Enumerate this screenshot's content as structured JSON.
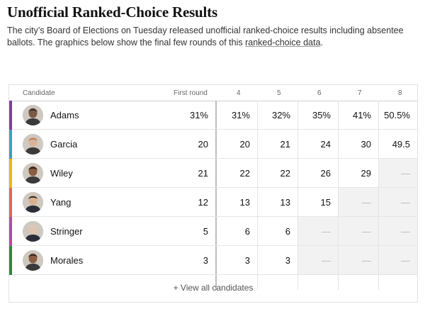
{
  "title": "Unofficial Ranked-Choice Results",
  "description_prefix": "The city’s Board of Elections on Tuesday released unofficial ranked-choice results including absentee ballots. The graphics below show the final few rounds of this ",
  "description_link": "ranked-choice data",
  "description_suffix": ".",
  "table": {
    "header_candidate": "Candidate",
    "header_first_round": "First round",
    "rounds": [
      "4",
      "5",
      "6",
      "7",
      "8"
    ],
    "empty_mark": "—",
    "candidates": [
      {
        "name": "Adams",
        "color": "#7b3fa0",
        "first": "31%",
        "rounds": [
          "31%",
          "32%",
          "35%",
          "41%",
          "50.5%"
        ]
      },
      {
        "name": "Garcia",
        "color": "#3aa3b5",
        "first": "20",
        "rounds": [
          "20",
          "21",
          "24",
          "30",
          "49.5"
        ]
      },
      {
        "name": "Wiley",
        "color": "#f2b318",
        "first": "21",
        "rounds": [
          "22",
          "22",
          "26",
          "29",
          "—"
        ]
      },
      {
        "name": "Yang",
        "color": "#e0684a",
        "first": "12",
        "rounds": [
          "13",
          "13",
          "15",
          "—",
          "—"
        ]
      },
      {
        "name": "Stringer",
        "color": "#b34aa3",
        "first": "5",
        "rounds": [
          "6",
          "6",
          "—",
          "—",
          "—"
        ]
      },
      {
        "name": "Morales",
        "color": "#2a8a3e",
        "first": "3",
        "rounds": [
          "3",
          "3",
          "—",
          "—",
          "—"
        ]
      }
    ],
    "view_all": "+ View all candidates"
  }
}
